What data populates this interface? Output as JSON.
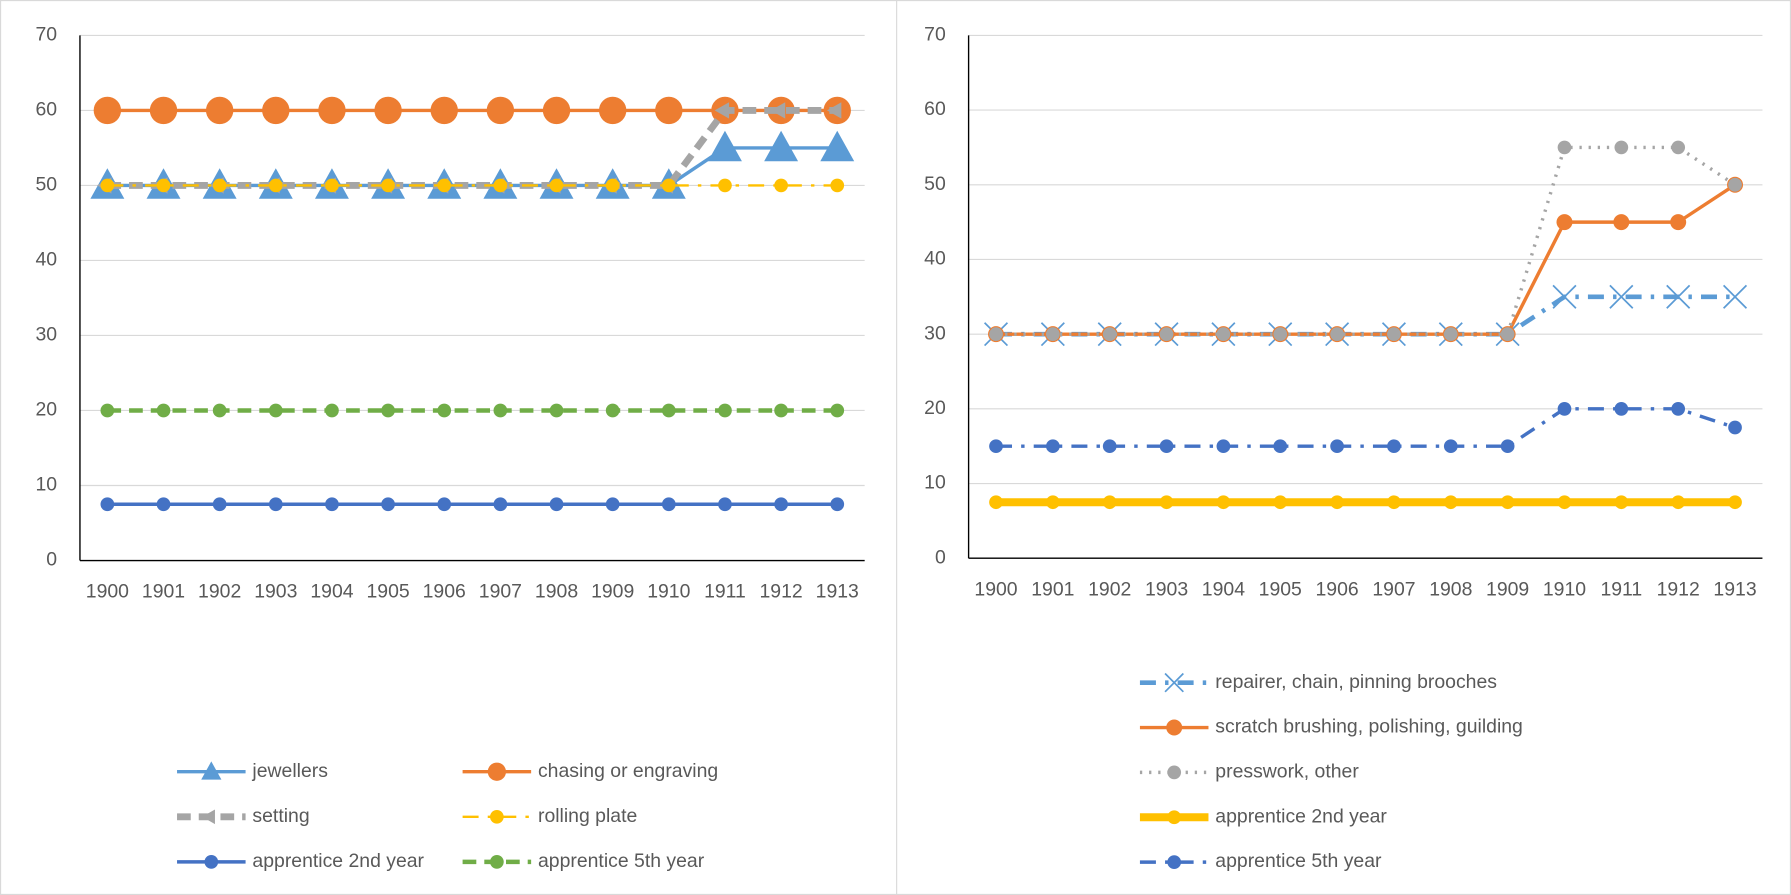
{
  "chart_data": [
    {
      "type": "line",
      "categories": [
        "1900",
        "1901",
        "1902",
        "1903",
        "1904",
        "1905",
        "1906",
        "1907",
        "1908",
        "1909",
        "1910",
        "1911",
        "1912",
        "1913"
      ],
      "ylim": [
        0,
        70
      ],
      "yticks": [
        0,
        10,
        20,
        30,
        40,
        50,
        60,
        70
      ],
      "grid": true,
      "legend": "bottom",
      "series": [
        {
          "name": "jewellers",
          "color": "#5b9bd5",
          "line_style": "solid",
          "marker": "triangle",
          "values": [
            50,
            50,
            50,
            50,
            50,
            50,
            50,
            50,
            50,
            50,
            50,
            55,
            55,
            55
          ]
        },
        {
          "name": "chasing or engraving",
          "color": "#ed7d31",
          "line_style": "solid",
          "marker": "circle",
          "values": [
            60,
            60,
            60,
            60,
            60,
            60,
            60,
            60,
            60,
            60,
            60,
            60,
            60,
            60
          ]
        },
        {
          "name": "setting",
          "color": "#a5a5a5",
          "line_style": "dash",
          "marker": "arrow",
          "values": [
            50,
            50,
            50,
            50,
            50,
            50,
            50,
            50,
            50,
            50,
            50,
            60,
            60,
            60
          ]
        },
        {
          "name": "rolling plate",
          "color": "#ffc000",
          "line_style": "dash-dot",
          "marker": "circle",
          "values": [
            50,
            50,
            50,
            50,
            50,
            50,
            50,
            50,
            50,
            50,
            50,
            50,
            50,
            50
          ]
        },
        {
          "name": "apprentice 2nd year",
          "color": "#4472c4",
          "line_style": "solid",
          "marker": "circle",
          "values": [
            7.5,
            7.5,
            7.5,
            7.5,
            7.5,
            7.5,
            7.5,
            7.5,
            7.5,
            7.5,
            7.5,
            7.5,
            7.5,
            7.5
          ]
        },
        {
          "name": "apprentice 5th year",
          "color": "#70ad47",
          "line_style": "dash",
          "marker": "circle",
          "values": [
            20,
            20,
            20,
            20,
            20,
            20,
            20,
            20,
            20,
            20,
            20,
            20,
            20,
            20
          ]
        }
      ]
    },
    {
      "type": "line",
      "categories": [
        "1900",
        "1901",
        "1902",
        "1903",
        "1904",
        "1905",
        "1906",
        "1907",
        "1908",
        "1909",
        "1910",
        "1911",
        "1912",
        "1913"
      ],
      "ylim": [
        0,
        70
      ],
      "yticks": [
        0,
        10,
        20,
        30,
        40,
        50,
        60,
        70
      ],
      "grid": true,
      "legend": "bottom",
      "series": [
        {
          "name": "repairer, chain, pinning brooches",
          "color": "#5b9bd5",
          "line_style": "dash-dot",
          "marker": "x",
          "values": [
            30,
            30,
            30,
            30,
            30,
            30,
            30,
            30,
            30,
            30,
            35,
            35,
            35,
            35
          ]
        },
        {
          "name": "scratch brushing, polishing, guilding",
          "color": "#ed7d31",
          "line_style": "solid",
          "marker": "circle",
          "values": [
            30,
            30,
            30,
            30,
            30,
            30,
            30,
            30,
            30,
            30,
            45,
            45,
            45,
            50
          ]
        },
        {
          "name": "presswork, other",
          "color": "#a5a5a5",
          "line_style": "dot",
          "marker": "circle",
          "values": [
            30,
            30,
            30,
            30,
            30,
            30,
            30,
            30,
            30,
            30,
            55,
            55,
            55,
            50
          ]
        },
        {
          "name": "apprentice 2nd year",
          "color": "#ffc000",
          "line_style": "solid",
          "marker": "circle",
          "values": [
            7.5,
            7.5,
            7.5,
            7.5,
            7.5,
            7.5,
            7.5,
            7.5,
            7.5,
            7.5,
            7.5,
            7.5,
            7.5,
            7.5
          ]
        },
        {
          "name": "apprentice 5th year",
          "color": "#4472c4",
          "line_style": "dash-dot",
          "marker": "circle",
          "values": [
            15,
            15,
            15,
            15,
            15,
            15,
            15,
            15,
            15,
            15,
            20,
            20,
            20,
            17.5
          ]
        }
      ]
    }
  ]
}
